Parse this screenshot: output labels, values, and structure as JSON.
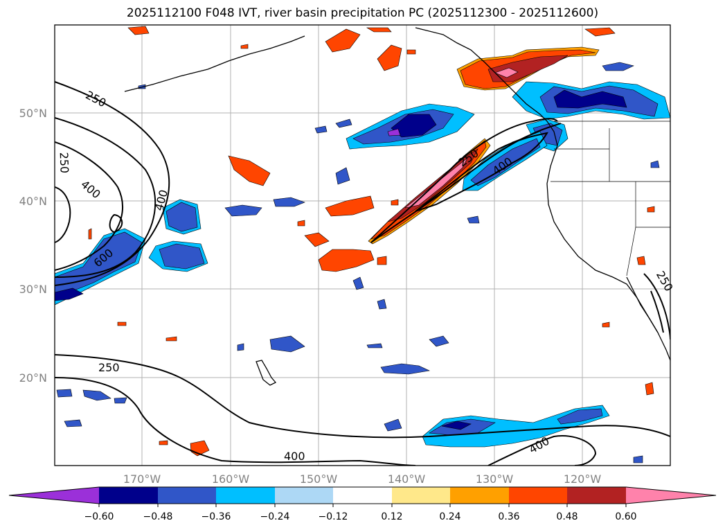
{
  "title": "2025112100 F048 IVT, river basin precipitation PC (2025112300 - 2025112600)",
  "map": {
    "lat_labels": [
      "50°N",
      "40°N",
      "30°N",
      "20°N"
    ],
    "lon_labels": [
      "170°W",
      "160°W",
      "150°W",
      "140°W",
      "130°W",
      "120°W"
    ],
    "contour_labels": [
      "250",
      "400",
      "600",
      "250",
      "400",
      "250",
      "400",
      "400",
      "250",
      "250"
    ]
  },
  "colorbar": {
    "tick_labels": [
      "−0.60",
      "−0.48",
      "−0.36",
      "−0.24",
      "−0.12",
      "0.12",
      "0.24",
      "0.36",
      "0.48",
      "0.60"
    ],
    "colors": [
      "#9b30d9",
      "#00008b",
      "#3056c8",
      "#00bfff",
      "#add8f5",
      "#ffffff",
      "#ffe88a",
      "#ffa000",
      "#ff4500",
      "#b22222",
      "#ff82ab"
    ]
  },
  "colors": {
    "purple": "#9b30d9",
    "navy": "#00008b",
    "blue": "#3056c8",
    "cyan": "#00bfff",
    "lightblue": "#add8f5",
    "yellow": "#ffe88a",
    "orange": "#ffa000",
    "redorange": "#ff4500",
    "darkred": "#b22222",
    "pink": "#ff82ab"
  }
}
